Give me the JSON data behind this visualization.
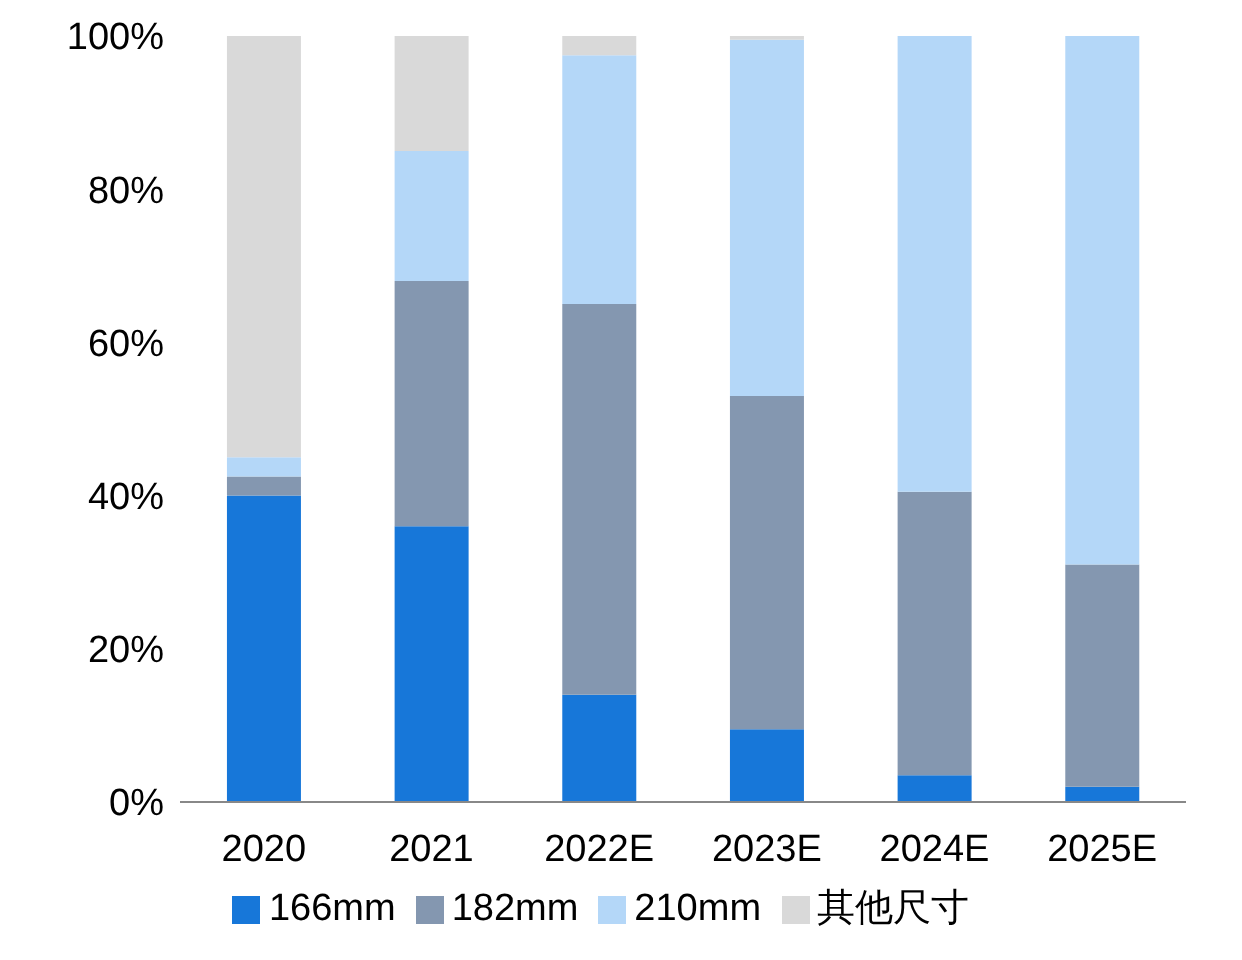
{
  "chart_data": {
    "type": "bar",
    "stacked": true,
    "categories": [
      "2020",
      "2021",
      "2022E",
      "2023E",
      "2024E",
      "2025E"
    ],
    "series": [
      {
        "name": "166mm",
        "color": "#1777d9",
        "values": [
          40,
          36,
          14,
          9.5,
          3.5,
          2
        ]
      },
      {
        "name": "182mm",
        "color": "#8497b0",
        "values": [
          2.5,
          32,
          51,
          43.5,
          37,
          29
        ]
      },
      {
        "name": "210mm",
        "color": "#b4d7f8",
        "values": [
          2.5,
          17,
          32.5,
          46.5,
          59.5,
          69
        ]
      },
      {
        "name": "其他尺寸",
        "color": "#d9d9d9",
        "values": [
          55,
          15,
          2.5,
          0.5,
          0,
          0
        ]
      }
    ],
    "ylim": [
      0,
      100
    ],
    "yticks": [
      {
        "value": 0,
        "label": "0%"
      },
      {
        "value": 20,
        "label": "20%"
      },
      {
        "value": 40,
        "label": "40%"
      },
      {
        "value": 60,
        "label": "60%"
      },
      {
        "value": 80,
        "label": "80%"
      },
      {
        "value": 100,
        "label": "100%"
      }
    ],
    "grid": false,
    "legend": "bottom"
  }
}
